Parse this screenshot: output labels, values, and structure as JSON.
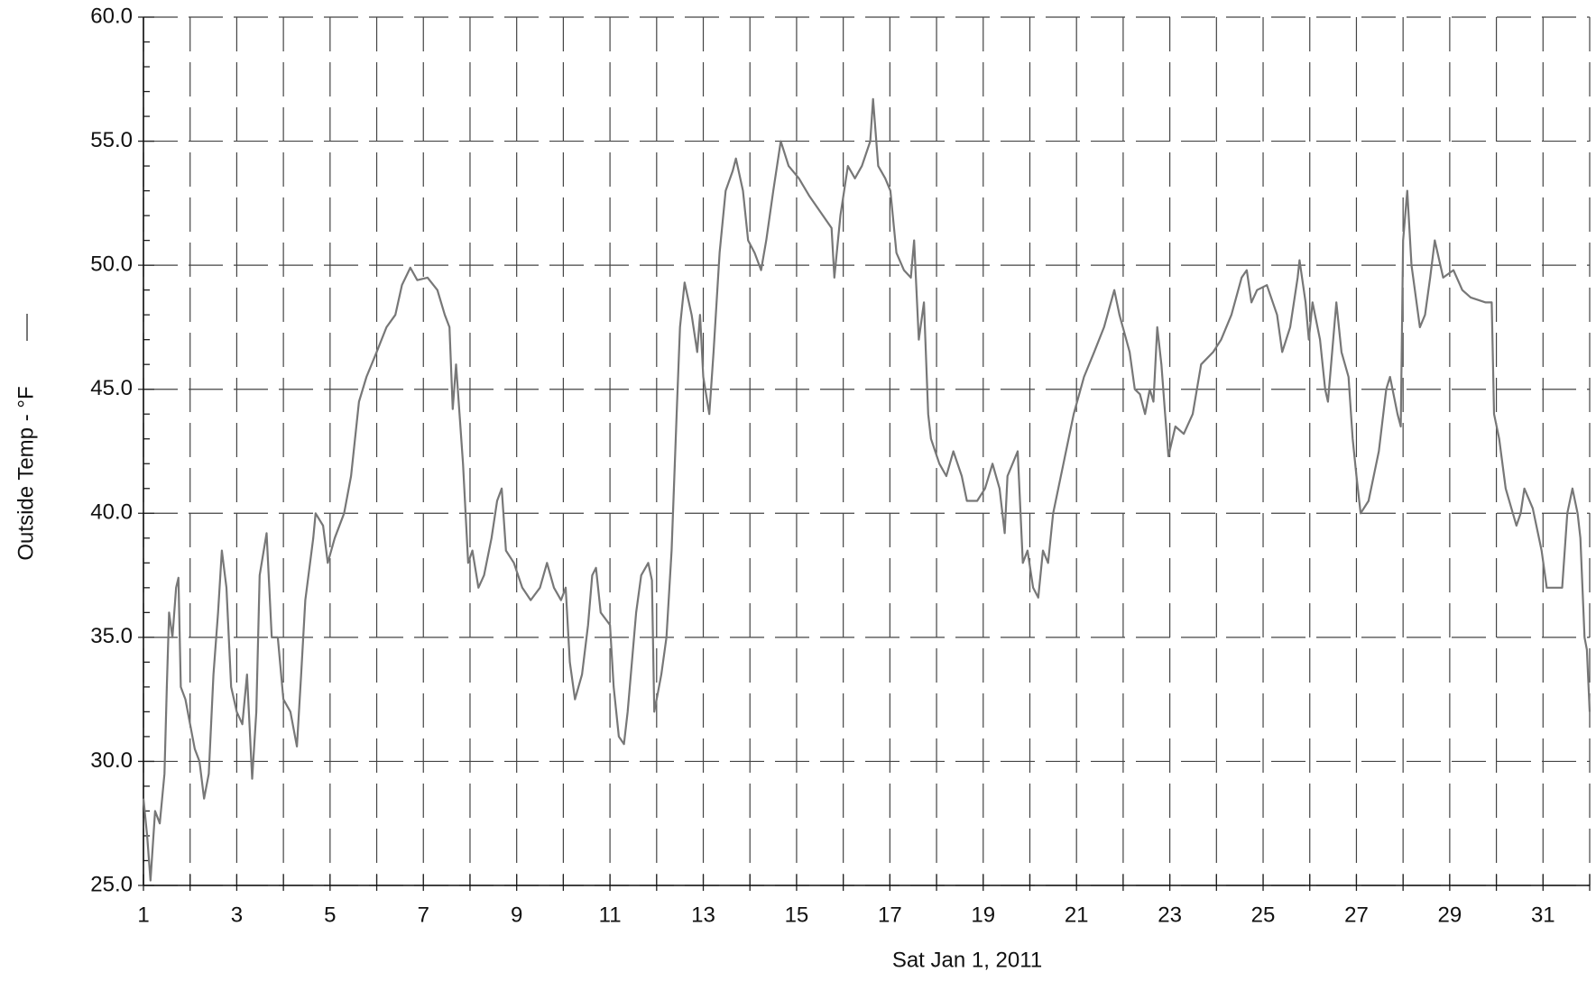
{
  "chart_data": {
    "type": "line",
    "xlabel": "Sat Jan 1, 2011",
    "ylabel": "Outside Temp - °F",
    "xlim": [
      1,
      32
    ],
    "ylim": [
      25,
      60
    ],
    "xticks": [
      1,
      3,
      5,
      7,
      9,
      11,
      13,
      15,
      17,
      19,
      21,
      23,
      25,
      27,
      29,
      31
    ],
    "xminorticks": [
      2,
      4,
      6,
      8,
      10,
      12,
      14,
      16,
      18,
      20,
      22,
      24,
      26,
      28,
      30,
      32
    ],
    "yticks": [
      {
        "value": 25,
        "label": "25.0"
      },
      {
        "value": 30,
        "label": "30.0"
      },
      {
        "value": 35,
        "label": "35.0"
      },
      {
        "value": 40,
        "label": "40.0"
      },
      {
        "value": 45,
        "label": "45.0"
      },
      {
        "value": 50,
        "label": "50.0"
      },
      {
        "value": 55,
        "label": "55.0"
      },
      {
        "value": 60,
        "label": "60.0"
      }
    ],
    "yminorticks": [
      26,
      27,
      28,
      29,
      31,
      32,
      33,
      34,
      36,
      37,
      38,
      39,
      41,
      42,
      43,
      44,
      46,
      47,
      48,
      49,
      51,
      52,
      53,
      54,
      56,
      57,
      58,
      59
    ],
    "grid": true,
    "series": [
      {
        "color": "#777777",
        "x": [
          1.0,
          1.08,
          1.15,
          1.25,
          1.35,
          1.45,
          1.5,
          1.55,
          1.62,
          1.7,
          1.75,
          1.8,
          1.9,
          2.0,
          2.1,
          2.2,
          2.3,
          2.4,
          2.5,
          2.6,
          2.68,
          2.78,
          2.88,
          3.0,
          3.12,
          3.22,
          3.33,
          3.42,
          3.49,
          3.64,
          3.75,
          3.88,
          4.0,
          4.15,
          4.29,
          4.38,
          4.47,
          4.64,
          4.69,
          4.85,
          4.95,
          5.1,
          5.3,
          5.45,
          5.62,
          5.78,
          6.0,
          6.21,
          6.4,
          6.54,
          6.72,
          6.87,
          7.09,
          7.3,
          7.46,
          7.56,
          7.63,
          7.7,
          7.85,
          7.96,
          8.05,
          8.18,
          8.3,
          8.46,
          8.58,
          8.68,
          8.77,
          8.94,
          9.12,
          9.3,
          9.5,
          9.65,
          9.8,
          9.95,
          10.05,
          10.14,
          10.25,
          10.4,
          10.53,
          10.62,
          10.7,
          10.8,
          11.0,
          11.08,
          11.19,
          11.3,
          11.38,
          11.56,
          11.67,
          11.82,
          11.9,
          11.95,
          12.1,
          12.21,
          12.32,
          12.43,
          12.5,
          12.6,
          12.75,
          12.87,
          12.93,
          13.0,
          13.13,
          13.22,
          13.35,
          13.48,
          13.63,
          13.7,
          13.85,
          13.96,
          14.1,
          14.24,
          14.35,
          14.5,
          14.66,
          14.83,
          15.05,
          15.27,
          15.75,
          15.81,
          15.94,
          16.1,
          16.25,
          16.4,
          16.58,
          16.64,
          16.75,
          16.9,
          17.01,
          17.14,
          17.3,
          17.45,
          17.52,
          17.62,
          17.73,
          17.82,
          17.88,
          18.06,
          18.21,
          18.36,
          18.54,
          18.65,
          18.87,
          19.04,
          19.2,
          19.35,
          19.46,
          19.52,
          19.74,
          19.85,
          19.95,
          20.07,
          20.18,
          20.28,
          20.39,
          20.5,
          20.72,
          20.94,
          21.16,
          21.38,
          21.59,
          21.81,
          21.92,
          22.14,
          22.25,
          22.36,
          22.47,
          22.57,
          22.65,
          22.73,
          22.82,
          22.9,
          22.97,
          23.12,
          23.3,
          23.49,
          23.67,
          23.93,
          24.1,
          24.32,
          24.54,
          24.65,
          24.75,
          24.87,
          25.08,
          25.3,
          25.41,
          25.58,
          25.74,
          25.78,
          25.91,
          25.98,
          26.06,
          26.22,
          26.33,
          26.39,
          26.57,
          26.68,
          26.83,
          26.92,
          27.0,
          27.09,
          27.26,
          27.48,
          27.64,
          27.72,
          27.88,
          27.95,
          28.0,
          28.09,
          28.18,
          28.36,
          28.47,
          28.58,
          28.68,
          28.86,
          29.08,
          29.27,
          29.45,
          29.77,
          29.9,
          29.95,
          30.06,
          30.2,
          30.43,
          30.52,
          30.6,
          30.78,
          30.97,
          31.08,
          31.41,
          31.52,
          31.63,
          31.74,
          31.8,
          31.89,
          31.94,
          32.0
        ],
        "values": [
          28.5,
          27,
          25.2,
          28,
          27.5,
          29.5,
          33,
          36,
          35,
          37,
          37.4,
          33,
          32.5,
          31.5,
          30.5,
          30,
          28.5,
          29.5,
          33.5,
          36,
          38.5,
          37,
          33,
          32,
          31.5,
          33.5,
          29.3,
          32,
          37.5,
          39.2,
          35,
          35,
          32.5,
          32,
          30.6,
          33.5,
          36.5,
          39,
          40,
          39.5,
          38,
          39,
          40,
          41.5,
          44.5,
          45.5,
          46.5,
          47.5,
          48,
          49.2,
          49.9,
          49.4,
          49.5,
          49,
          48,
          47.5,
          44.2,
          46,
          42,
          38,
          38.5,
          37,
          37.5,
          39,
          40.5,
          41,
          38.5,
          38,
          37,
          36.5,
          37,
          38,
          37,
          36.5,
          37,
          34,
          32.5,
          33.5,
          35.5,
          37.5,
          37.8,
          36,
          35.5,
          33,
          31,
          30.7,
          32,
          36,
          37.5,
          38,
          37.3,
          32,
          33.5,
          35,
          38.5,
          44,
          47.5,
          49.3,
          48,
          46.5,
          48,
          45.5,
          44,
          46.5,
          50.5,
          53,
          53.8,
          54.3,
          53,
          51,
          50.5,
          49.8,
          51,
          53,
          55,
          54,
          53.5,
          52.8,
          51.5,
          49.5,
          52,
          54,
          53.5,
          54,
          55,
          56.7,
          54,
          53.5,
          53,
          50.5,
          49.8,
          49.5,
          51,
          47,
          48.5,
          44,
          43,
          42,
          41.5,
          42.5,
          41.5,
          40.5,
          40.5,
          41,
          42,
          41,
          39.2,
          41.5,
          42.5,
          38,
          38.5,
          37,
          36.6,
          38.5,
          38,
          40,
          42,
          44,
          45.5,
          46.5,
          47.5,
          49,
          48,
          46.5,
          45,
          44.8,
          44,
          45,
          44.5,
          47.5,
          46,
          44,
          42.3,
          43.5,
          43.2,
          44,
          46,
          46.5,
          47,
          48,
          49.5,
          49.8,
          48.5,
          49,
          49.2,
          48,
          46.5,
          47.5,
          49.5,
          50.2,
          48.5,
          47,
          48.5,
          47,
          45,
          44.5,
          48.5,
          46.5,
          45.5,
          43,
          41.5,
          40,
          40.5,
          42.5,
          45,
          45.5,
          44,
          43.5,
          51,
          53,
          50,
          47.5,
          48,
          49.5,
          51,
          49.5,
          49.8,
          49,
          48.7,
          48.5,
          48.5,
          44,
          43,
          41,
          39.5,
          40,
          41,
          40.2,
          38.5,
          37,
          37,
          40,
          41,
          40,
          39,
          35,
          34.5,
          32
        ]
      }
    ]
  }
}
